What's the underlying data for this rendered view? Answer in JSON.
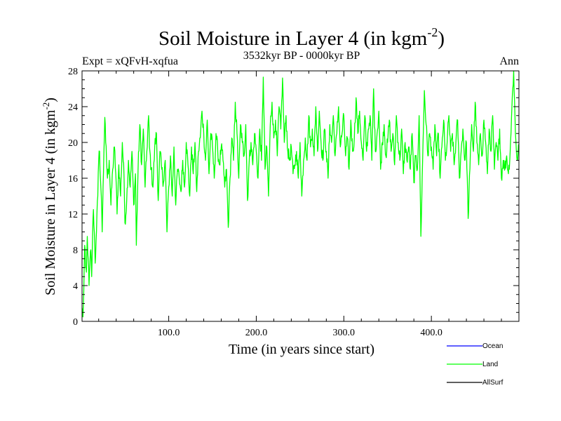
{
  "chart_data": {
    "type": "line",
    "title": "Soil Moisture in Layer 4 (in kgm",
    "title_superscript": "-2",
    "title_close": ")",
    "subtitle_left": "Expt = xQFvH-xqfua",
    "subtitle_center": "3532kyr BP - 0000kyr BP",
    "subtitle_right": "Ann",
    "xlabel": "Time (in years since start)",
    "ylabel": "Soil Moisture in Layer 4 (in kgm",
    "ylabel_superscript": "-2",
    "ylabel_close": ")",
    "xlim": [
      1,
      500
    ],
    "ylim": [
      0,
      28
    ],
    "x_ticks": [
      100,
      200,
      300,
      400
    ],
    "x_tick_labels": [
      "100.0",
      "200.0",
      "300.0",
      "400.0"
    ],
    "y_ticks": [
      0,
      4,
      8,
      12,
      16,
      20,
      24,
      28
    ],
    "y_tick_labels": [
      "0",
      "4",
      "8",
      "12",
      "16",
      "20",
      "24",
      "28"
    ],
    "legend": [
      {
        "name": "Ocean",
        "color": "#0000ff"
      },
      {
        "name": "Land",
        "color": "#00ff00"
      },
      {
        "name": "AllSurf",
        "color": "#000000"
      }
    ],
    "series": [
      {
        "name": "Land",
        "color": "#00ff00",
        "anchors": [
          [
            1,
            1.5
          ],
          [
            2,
            0.5
          ],
          [
            3,
            3.5
          ],
          [
            4,
            8.5
          ],
          [
            5,
            6
          ],
          [
            6,
            5.5
          ],
          [
            7,
            9.5
          ],
          [
            8,
            7
          ],
          [
            9,
            4
          ],
          [
            10,
            6.5
          ],
          [
            11,
            8
          ],
          [
            12,
            5
          ],
          [
            13,
            9.5
          ],
          [
            14,
            12.5
          ],
          [
            15,
            10
          ],
          [
            16,
            6.5
          ],
          [
            17,
            9
          ],
          [
            18,
            12
          ],
          [
            19,
            14
          ],
          [
            20,
            18
          ],
          [
            21,
            19
          ],
          [
            22,
            16
          ],
          [
            23,
            14
          ],
          [
            24,
            10
          ],
          [
            25,
            15
          ],
          [
            26,
            19
          ],
          [
            27,
            22.8
          ],
          [
            28,
            20
          ],
          [
            30,
            16
          ],
          [
            32,
            18
          ],
          [
            34,
            13
          ],
          [
            36,
            17
          ],
          [
            38,
            19.5
          ],
          [
            40,
            15.5
          ],
          [
            41,
            12
          ],
          [
            43,
            17.5
          ],
          [
            45,
            14
          ],
          [
            47,
            20
          ],
          [
            49,
            16
          ],
          [
            50,
            11
          ],
          [
            52,
            13.5
          ],
          [
            54,
            18
          ],
          [
            56,
            15
          ],
          [
            58,
            19
          ],
          [
            60,
            13
          ],
          [
            62,
            16.5
          ],
          [
            63,
            8.5
          ],
          [
            65,
            17
          ],
          [
            67,
            22
          ],
          [
            69,
            17.5
          ],
          [
            71,
            21.5
          ],
          [
            73,
            15
          ],
          [
            75,
            19
          ],
          [
            77,
            23
          ],
          [
            78,
            19.5
          ],
          [
            80,
            17
          ],
          [
            82,
            15
          ],
          [
            84,
            19.5
          ],
          [
            86,
            21
          ],
          [
            88,
            13.5
          ],
          [
            90,
            19
          ],
          [
            92,
            17
          ],
          [
            94,
            15.5
          ],
          [
            96,
            18
          ],
          [
            98,
            10
          ],
          [
            100,
            15
          ],
          [
            102,
            18.5
          ],
          [
            104,
            14
          ],
          [
            106,
            19.5
          ],
          [
            108,
            13
          ],
          [
            110,
            17
          ],
          [
            112,
            16
          ],
          [
            114,
            14.5
          ],
          [
            116,
            18
          ],
          [
            118,
            15
          ],
          [
            120,
            20
          ],
          [
            122,
            17.5
          ],
          [
            124,
            14
          ],
          [
            126,
            19.5
          ],
          [
            128,
            16.5
          ],
          [
            130,
            20
          ],
          [
            132,
            14.5
          ],
          [
            134,
            19
          ],
          [
            136,
            20.5
          ],
          [
            138,
            23.5
          ],
          [
            140,
            21
          ],
          [
            142,
            18
          ],
          [
            144,
            22.5
          ],
          [
            146,
            16.5
          ],
          [
            148,
            21
          ],
          [
            150,
            19.5
          ],
          [
            152,
            16
          ],
          [
            154,
            21
          ],
          [
            156,
            19
          ],
          [
            158,
            17.5
          ],
          [
            160,
            19.5
          ],
          [
            162,
            18
          ],
          [
            164,
            15
          ],
          [
            166,
            17
          ],
          [
            168,
            10.5
          ],
          [
            170,
            16
          ],
          [
            172,
            20.5
          ],
          [
            174,
            18
          ],
          [
            176,
            24.5
          ],
          [
            178,
            21
          ],
          [
            180,
            16
          ],
          [
            182,
            22
          ],
          [
            184,
            20
          ],
          [
            186,
            18.5
          ],
          [
            188,
            22
          ],
          [
            190,
            13.5
          ],
          [
            192,
            18
          ],
          [
            194,
            20
          ],
          [
            196,
            17.5
          ],
          [
            198,
            21
          ],
          [
            200,
            19
          ],
          [
            202,
            16
          ],
          [
            204,
            21.5
          ],
          [
            206,
            18
          ],
          [
            208,
            27.3
          ],
          [
            210,
            17
          ],
          [
            212,
            19.5
          ],
          [
            214,
            14
          ],
          [
            216,
            22
          ],
          [
            218,
            24.5
          ],
          [
            220,
            20.5
          ],
          [
            222,
            22.5
          ],
          [
            224,
            18.5
          ],
          [
            226,
            24
          ],
          [
            228,
            21.5
          ],
          [
            230,
            27.2
          ],
          [
            232,
            20
          ],
          [
            234,
            23
          ],
          [
            236,
            19
          ],
          [
            238,
            18
          ],
          [
            240,
            19.5
          ],
          [
            242,
            16.5
          ],
          [
            244,
            17.5
          ],
          [
            246,
            19
          ],
          [
            248,
            16
          ],
          [
            250,
            20
          ],
          [
            252,
            14
          ],
          [
            254,
            18
          ],
          [
            256,
            20.5
          ],
          [
            258,
            18
          ],
          [
            260,
            23
          ],
          [
            262,
            19.5
          ],
          [
            264,
            21.5
          ],
          [
            266,
            18.5
          ],
          [
            268,
            24
          ],
          [
            270,
            19
          ],
          [
            272,
            23.5
          ],
          [
            274,
            20
          ],
          [
            276,
            18
          ],
          [
            278,
            21.5
          ],
          [
            280,
            19
          ],
          [
            282,
            16
          ],
          [
            284,
            22
          ],
          [
            286,
            20
          ],
          [
            288,
            23
          ],
          [
            290,
            18.5
          ],
          [
            292,
            21
          ],
          [
            294,
            24
          ],
          [
            296,
            19.5
          ],
          [
            298,
            21
          ],
          [
            300,
            23
          ],
          [
            302,
            18.5
          ],
          [
            304,
            20.5
          ],
          [
            306,
            17
          ],
          [
            308,
            22.5
          ],
          [
            310,
            19
          ],
          [
            312,
            20.5
          ],
          [
            314,
            25
          ],
          [
            316,
            21
          ],
          [
            318,
            23.5
          ],
          [
            320,
            20
          ],
          [
            322,
            18
          ],
          [
            324,
            23
          ],
          [
            326,
            19
          ],
          [
            328,
            21.5
          ],
          [
            330,
            23
          ],
          [
            332,
            18
          ],
          [
            334,
            26
          ],
          [
            336,
            19
          ],
          [
            338,
            21
          ],
          [
            340,
            23.5
          ],
          [
            342,
            17
          ],
          [
            344,
            20
          ],
          [
            346,
            22
          ],
          [
            348,
            18.5
          ],
          [
            350,
            20
          ],
          [
            352,
            22.5
          ],
          [
            354,
            19
          ],
          [
            356,
            21
          ],
          [
            358,
            17.5
          ],
          [
            360,
            23
          ],
          [
            362,
            20
          ],
          [
            364,
            18
          ],
          [
            366,
            21.5
          ],
          [
            368,
            16.5
          ],
          [
            370,
            20
          ],
          [
            372,
            18
          ],
          [
            374,
            19.5
          ],
          [
            376,
            17
          ],
          [
            378,
            21
          ],
          [
            380,
            15.5
          ],
          [
            382,
            18.5
          ],
          [
            384,
            17
          ],
          [
            386,
            23
          ],
          [
            388,
            9.5
          ],
          [
            390,
            18
          ],
          [
            392,
            25.8
          ],
          [
            394,
            22
          ],
          [
            396,
            18.5
          ],
          [
            398,
            21
          ],
          [
            400,
            19.5
          ],
          [
            402,
            17
          ],
          [
            404,
            22
          ],
          [
            406,
            18.5
          ],
          [
            408,
            21
          ],
          [
            410,
            16
          ],
          [
            412,
            19.5
          ],
          [
            414,
            22.5
          ],
          [
            416,
            18
          ],
          [
            418,
            20
          ],
          [
            420,
            23
          ],
          [
            422,
            19
          ],
          [
            424,
            21
          ],
          [
            426,
            17.5
          ],
          [
            428,
            20
          ],
          [
            430,
            22.5
          ],
          [
            432,
            16
          ],
          [
            434,
            19
          ],
          [
            436,
            21.5
          ],
          [
            438,
            18
          ],
          [
            440,
            20
          ],
          [
            442,
            11.5
          ],
          [
            444,
            17
          ],
          [
            446,
            22
          ],
          [
            448,
            19
          ],
          [
            450,
            24.5
          ],
          [
            452,
            20
          ],
          [
            454,
            17.5
          ],
          [
            456,
            21
          ],
          [
            458,
            18.5
          ],
          [
            460,
            22.5
          ],
          [
            462,
            20
          ],
          [
            464,
            16.5
          ],
          [
            466,
            21.5
          ],
          [
            468,
            19
          ],
          [
            470,
            23
          ],
          [
            472,
            17
          ],
          [
            474,
            20
          ],
          [
            476,
            18
          ],
          [
            478,
            21.5
          ],
          [
            480,
            16
          ],
          [
            482,
            18
          ],
          [
            484,
            17
          ],
          [
            486,
            18.5
          ],
          [
            488,
            16.5
          ],
          [
            490,
            19
          ],
          [
            492,
            24
          ],
          [
            494,
            28
          ],
          [
            496,
            21
          ],
          [
            498,
            18
          ],
          [
            500,
            19.5
          ]
        ]
      }
    ]
  }
}
